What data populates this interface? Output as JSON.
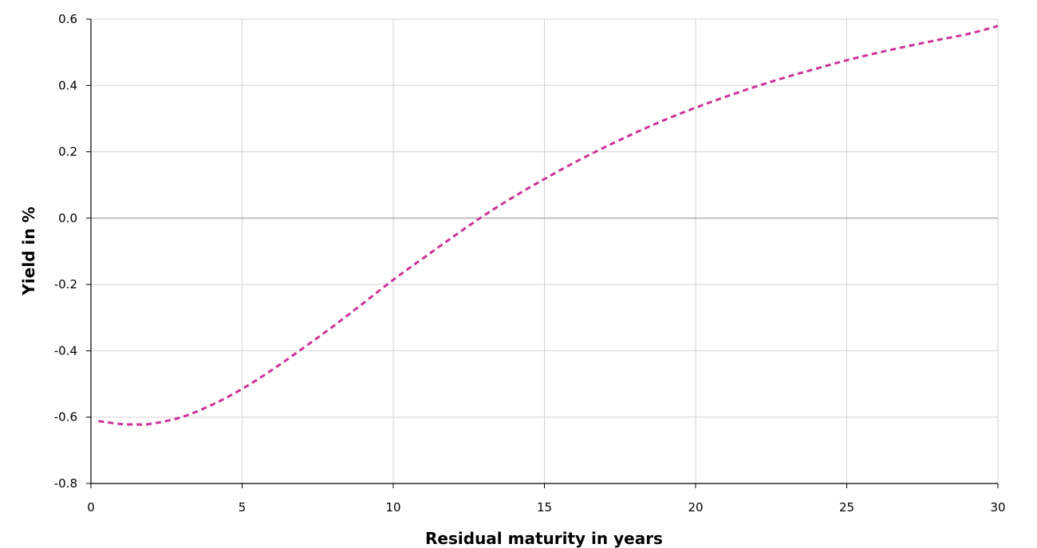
{
  "chart_data": {
    "type": "line",
    "xlabel": "Residual maturity in years",
    "ylabel": "Yield in %",
    "xlim": [
      0,
      30
    ],
    "ylim": [
      -0.8,
      0.6
    ],
    "x_ticks": [
      "0",
      "5",
      "10",
      "15",
      "20",
      "25",
      "30"
    ],
    "y_ticks": [
      "0.6",
      "0.4",
      "0.2",
      "0.0",
      "-0.2",
      "-0.4",
      "-0.6",
      "-0.8"
    ],
    "grid": true,
    "legend": "none",
    "series": [
      {
        "color": "#cc3399",
        "line_style": "dashed",
        "x": [
          0.25,
          0.5,
          1,
          1.5,
          2,
          3,
          4,
          5,
          6,
          7,
          8,
          9,
          10,
          11,
          12,
          13,
          14,
          15,
          16,
          17,
          18,
          19,
          20,
          21,
          22,
          23,
          24,
          25,
          26,
          27,
          28,
          29,
          30
        ],
        "y": [
          -0.612,
          -0.615,
          -0.621,
          -0.622,
          -0.62,
          -0.6,
          -0.563,
          -0.515,
          -0.457,
          -0.393,
          -0.327,
          -0.257,
          -0.186,
          -0.12,
          -0.055,
          0.008,
          0.065,
          0.118,
          0.168,
          0.214,
          0.257,
          0.297,
          0.333,
          0.366,
          0.397,
          0.425,
          0.451,
          0.476,
          0.498,
          0.518,
          0.537,
          0.555,
          0.579
        ]
      }
    ]
  }
}
